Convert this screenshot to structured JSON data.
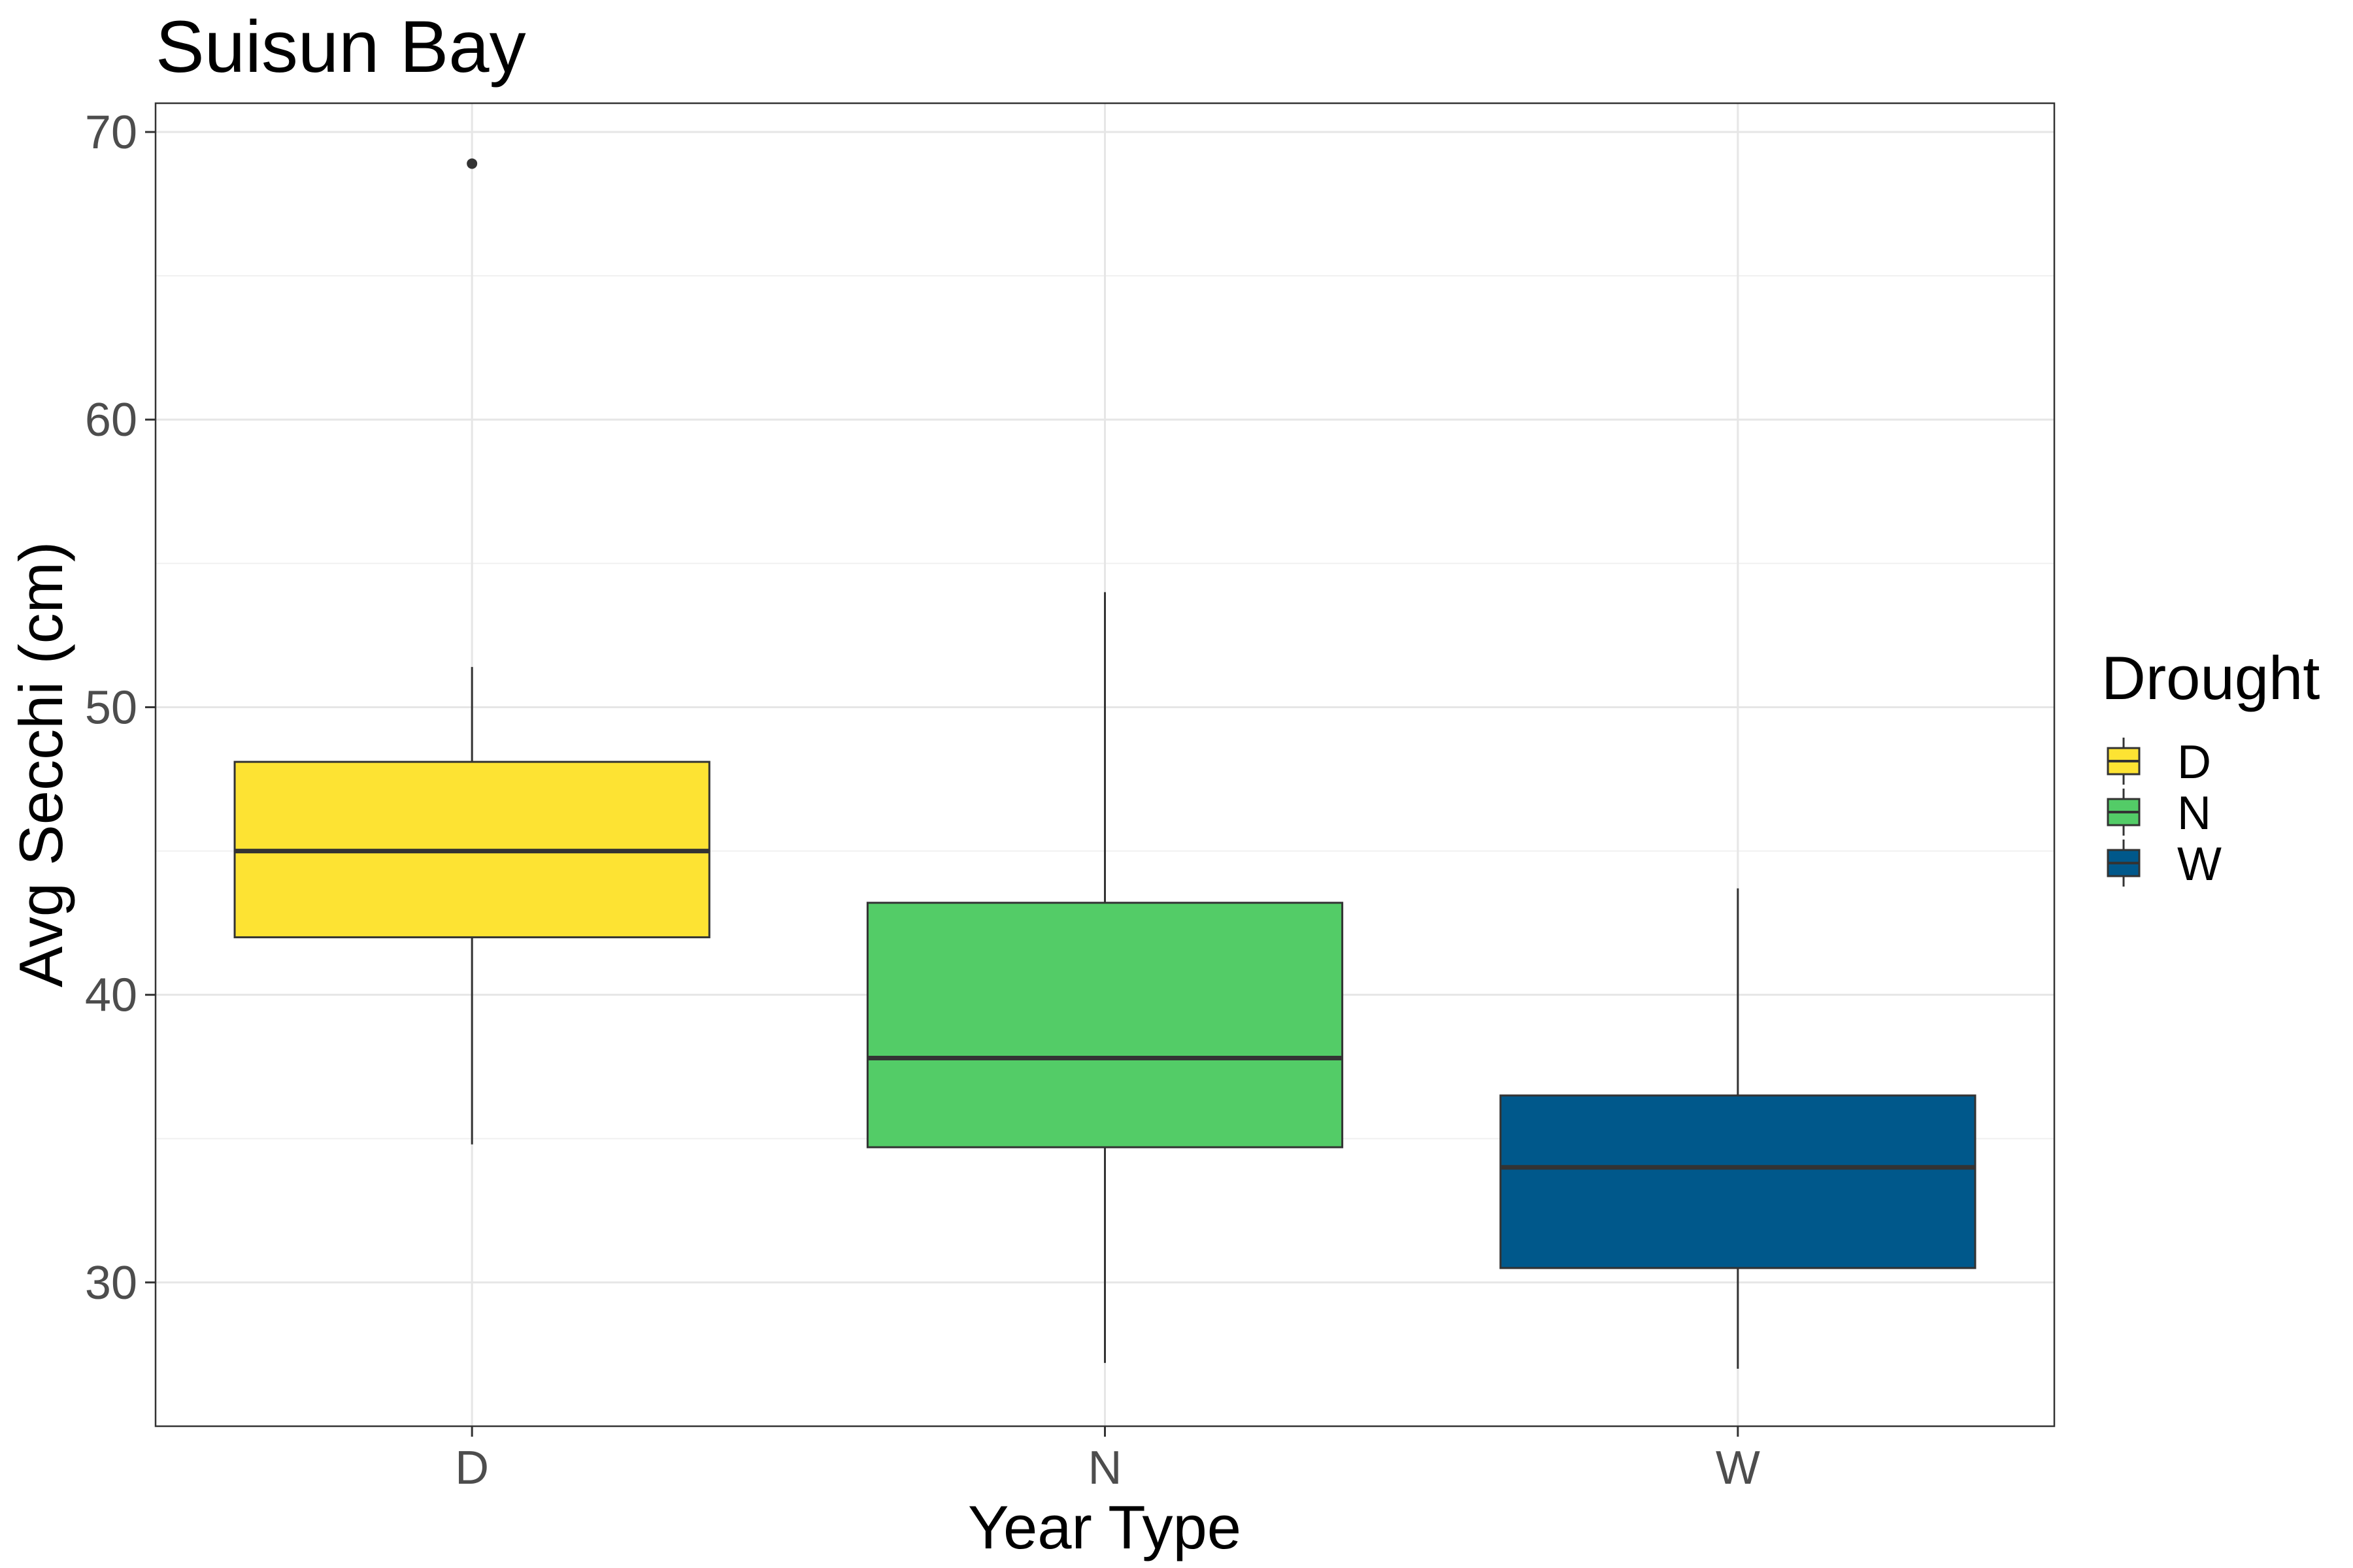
{
  "chart_data": {
    "type": "box",
    "title": "Suisun Bay",
    "xlabel": "Year Type",
    "ylabel": "Avg Secchi (cm)",
    "categories": [
      "D",
      "N",
      "W"
    ],
    "ylim": [
      25,
      71
    ],
    "yticks": [
      30,
      40,
      50,
      60,
      70
    ],
    "grid": true,
    "legend": {
      "title": "Drought",
      "placement": "right",
      "entries": [
        {
          "label": "D",
          "color": "#FDE333"
        },
        {
          "label": "N",
          "color": "#53CC67"
        },
        {
          "label": "W",
          "color": "#00588B"
        }
      ]
    },
    "boxes": [
      {
        "category": "D",
        "whisker_low": 34.8,
        "q1": 42.0,
        "median": 45.0,
        "q3": 48.1,
        "whisker_high": 51.4,
        "outliers": [
          68.9
        ],
        "color": "#FDE333"
      },
      {
        "category": "N",
        "whisker_low": 27.2,
        "q1": 34.7,
        "median": 37.8,
        "q3": 43.2,
        "whisker_high": 54.0,
        "outliers": [],
        "color": "#53CC67"
      },
      {
        "category": "W",
        "whisker_low": 27.0,
        "q1": 30.5,
        "median": 34.0,
        "q3": 36.5,
        "whisker_high": 43.7,
        "outliers": [],
        "color": "#00588B"
      }
    ]
  }
}
